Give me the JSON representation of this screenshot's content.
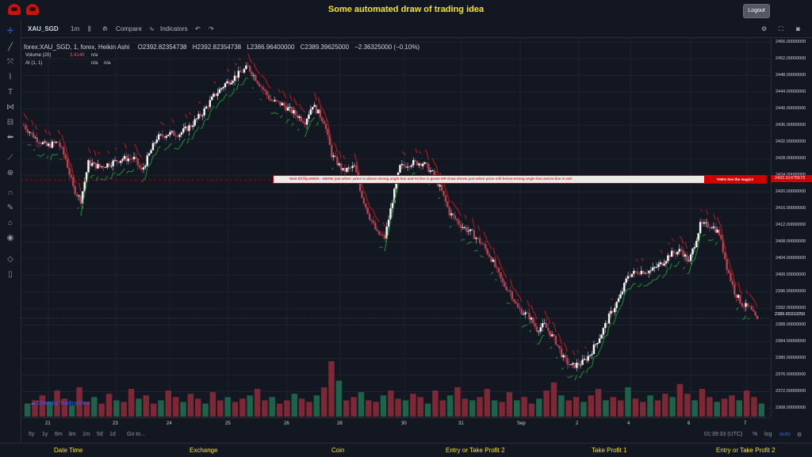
{
  "header": {
    "title": "Some automated draw of trading idea",
    "logout_label": "Logout"
  },
  "toolbar": {
    "symbol": "XAU_SGD",
    "interval": "1m",
    "compare_label": "Compare",
    "indicators_label": "Indicators"
  },
  "legend": {
    "main": "forex:XAU_SGD, 1, forex, Heikin Ashi",
    "open": "O2392.82354738",
    "high": "H2392.82354738",
    "low": "L2386.96400000",
    "close": "C2389.39625000",
    "change": "−2.36325000 (−0.10%)",
    "volume_label": "Volume (20)",
    "volume_value": "3.414K",
    "volume_na": "n/a",
    "ai_label": "AI (1, 1)",
    "ai_na1": "n/a",
    "ai_na2": "n/a"
  },
  "banner": {
    "text": "Wait till flip ENDS  -  DRAW just when:  price is above strong angle line and AI line is green         OR         draw shorts just when price still below strong angle line and AI line is red",
    "cta": "THEN See the magic!!",
    "price": "2422.91475573"
  },
  "last_price": "2389.65310250",
  "chart_data": {
    "type": "candlestick",
    "y_axis": {
      "range": [
        2366,
        2457
      ],
      "ticks": [
        "2456.00000000",
        "2452.00000000",
        "2448.00000000",
        "2444.00000000",
        "2440.00000000",
        "2436.00000000",
        "2432.00000000",
        "2428.00000000",
        "2424.00000000",
        "2420.00000000",
        "2416.00000000",
        "2412.00000000",
        "2408.00000000",
        "2404.00000000",
        "2400.00000000",
        "2396.00000000",
        "2392.00000000",
        "2388.00000000",
        "2384.00000000",
        "2380.00000000",
        "2376.00000000",
        "2372.00000000",
        "2368.00000000"
      ]
    },
    "x_axis": {
      "ticks": [
        "21",
        "23",
        "24",
        "25",
        "26",
        "28",
        "30",
        "31",
        "Sep",
        "2",
        "4",
        "6",
        "7"
      ]
    },
    "close_path": [
      [
        0,
        2436
      ],
      [
        3,
        2433
      ],
      [
        6,
        2431
      ],
      [
        9,
        2432
      ],
      [
        11,
        2428
      ],
      [
        13,
        2421
      ],
      [
        15,
        2418
      ],
      [
        17,
        2427
      ],
      [
        20,
        2426
      ],
      [
        23,
        2427
      ],
      [
        26,
        2428
      ],
      [
        29,
        2428
      ],
      [
        31,
        2425
      ],
      [
        33,
        2429
      ],
      [
        35,
        2433
      ],
      [
        38,
        2434
      ],
      [
        41,
        2434
      ],
      [
        44,
        2436
      ],
      [
        47,
        2439
      ],
      [
        50,
        2443
      ],
      [
        53,
        2446
      ],
      [
        56,
        2448
      ],
      [
        59,
        2450
      ],
      [
        62,
        2446
      ],
      [
        65,
        2442
      ],
      [
        68,
        2441
      ],
      [
        71,
        2439
      ],
      [
        74,
        2437
      ],
      [
        76,
        2441
      ],
      [
        79,
        2437
      ],
      [
        81,
        2429
      ],
      [
        84,
        2425
      ],
      [
        87,
        2426
      ],
      [
        89,
        2419
      ],
      [
        91,
        2414
      ],
      [
        93,
        2410
      ],
      [
        95,
        2409
      ],
      [
        97,
        2418
      ],
      [
        99,
        2426
      ],
      [
        102,
        2427
      ],
      [
        105,
        2427
      ],
      [
        108,
        2424
      ],
      [
        110,
        2420
      ],
      [
        112,
        2415
      ],
      [
        115,
        2412
      ],
      [
        118,
        2410
      ],
      [
        121,
        2407
      ],
      [
        123,
        2404
      ],
      [
        126,
        2398
      ],
      [
        128,
        2396
      ],
      [
        130,
        2392
      ],
      [
        133,
        2390
      ],
      [
        135,
        2387
      ],
      [
        137,
        2388
      ],
      [
        140,
        2384
      ],
      [
        142,
        2380
      ],
      [
        144,
        2378
      ],
      [
        147,
        2379
      ],
      [
        149,
        2381
      ],
      [
        152,
        2386
      ],
      [
        154,
        2390
      ],
      [
        157,
        2395
      ],
      [
        159,
        2400
      ],
      [
        162,
        2401
      ],
      [
        165,
        2401
      ],
      [
        168,
        2403
      ],
      [
        170,
        2405
      ],
      [
        173,
        2406
      ],
      [
        175,
        2403
      ],
      [
        178,
        2412
      ],
      [
        181,
        2412
      ],
      [
        183,
        2410
      ],
      [
        185,
        2402
      ],
      [
        187,
        2396
      ],
      [
        189,
        2393
      ],
      [
        191,
        2392
      ],
      [
        193,
        2389
      ]
    ],
    "volume": {
      "max": 3.4,
      "bars": [
        0.8,
        1.0,
        1.3,
        0.9,
        1.6,
        1.1,
        0.7,
        1.8,
        0.9,
        1.2,
        0.8,
        1.4,
        1.0,
        0.9,
        1.7,
        1.1,
        1.3,
        0.8,
        1.0,
        1.6,
        1.2,
        0.9,
        1.4,
        1.1,
        0.8,
        1.5,
        1.0,
        1.2,
        0.9,
        1.1,
        1.3,
        1.7,
        1.0,
        1.2,
        0.8,
        1.0,
        1.4,
        1.1,
        0.9,
        1.3,
        1.8,
        3.4,
        2.2,
        1.0,
        1.2,
        1.5,
        1.0,
        0.9,
        1.3,
        1.6,
        1.1,
        1.0,
        1.4,
        1.2,
        0.8,
        1.6,
        1.0,
        1.3,
        1.8,
        1.1,
        1.0,
        1.2,
        1.7,
        1.0,
        0.9,
        1.5,
        1.0,
        1.2,
        0.8,
        1.1,
        1.6,
        2.1,
        1.3,
        1.0,
        1.2,
        0.9,
        1.3,
        1.7,
        1.0,
        1.2,
        1.0,
        1.8,
        1.1,
        0.9,
        1.3,
        1.0,
        1.4,
        1.2,
        2.0,
        1.4,
        1.0,
        1.7,
        1.2,
        0.9,
        1.1,
        1.3,
        1.0,
        1.6,
        1.2,
        0.8
      ]
    }
  },
  "bottom": {
    "ranges": [
      "5y",
      "1y",
      "6m",
      "3m",
      "1m",
      "5d",
      "1d"
    ],
    "goto": "Go to...",
    "time": "01:39:33 (UTC)",
    "percent": "%",
    "log": "log",
    "auto": "auto"
  },
  "watermark": "Chart by TradingView",
  "footer": {
    "items": [
      "Date Time",
      "Exchange",
      "Coin",
      "Entry or Take Profit 2",
      "Take Profit 1",
      "Entry or Take Profit 2"
    ]
  },
  "colors": {
    "background": "#131722",
    "up": "#26a69a",
    "down": "#ef5350",
    "ai_green": "#1b8a2e",
    "ai_red": "#b71c1c",
    "title": "#f5e616"
  }
}
